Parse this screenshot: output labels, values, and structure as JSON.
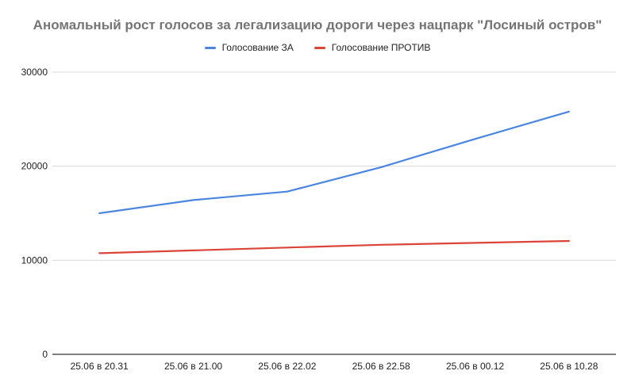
{
  "chart_data": {
    "type": "line",
    "title": "Аномальный рост голосов за легализацию дороги через нацпарк \"Лосиный остров\"",
    "xlabel": "",
    "ylabel": "",
    "categories": [
      "25.06 в 20.31",
      "25.06 в 21.00",
      "25.06 в 22.02",
      "25.06 в 22.58",
      "25.06 в 00.12",
      "25.06 в 10.28"
    ],
    "ylim": [
      0,
      30000
    ],
    "yticks": [
      0,
      10000,
      20000,
      30000
    ],
    "ytick_labels": [
      "0",
      "10000",
      "20000",
      "30000"
    ],
    "grid": true,
    "legend": "top-center",
    "series": [
      {
        "name": "Голосование ЗА",
        "color": "#4a86e0",
        "values": [
          15000,
          16400,
          17300,
          19900,
          22900,
          25800
        ]
      },
      {
        "name": "Голосование ПРОТИВ",
        "color": "#db4437",
        "values": [
          10750,
          11050,
          11350,
          11650,
          11850,
          12050
        ]
      }
    ]
  }
}
